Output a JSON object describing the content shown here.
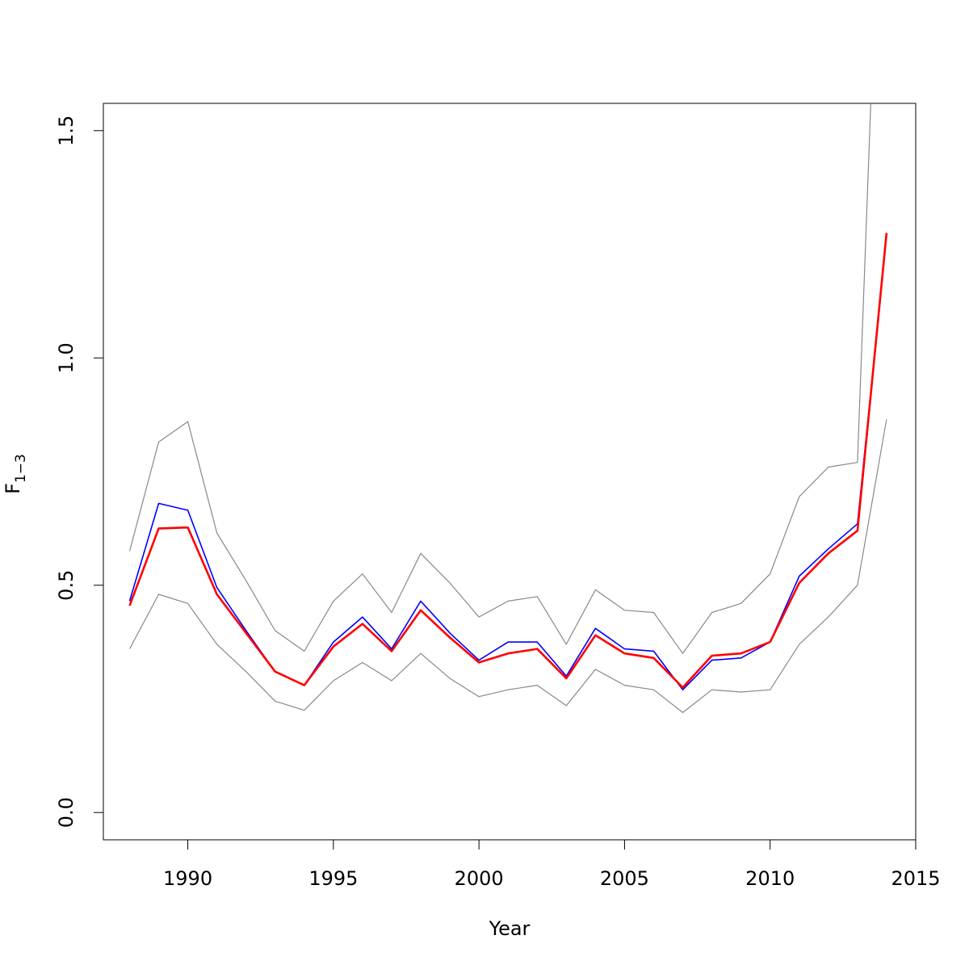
{
  "chart_data": {
    "type": "line",
    "title": "",
    "xlabel": "Year",
    "ylabel": "F",
    "ylabel_subscript": "1−3",
    "xlim": [
      1987.1,
      2015.0
    ],
    "ylim": [
      -0.06,
      1.56
    ],
    "x_ticks": [
      1990,
      1995,
      2000,
      2005,
      2010,
      2015
    ],
    "x_tick_labels": [
      "1990",
      "1995",
      "2000",
      "2005",
      "2010",
      "2015"
    ],
    "y_ticks": [
      0.0,
      0.5,
      1.0,
      1.5
    ],
    "y_tick_labels": [
      "0.0",
      "0.5",
      "1.0",
      "1.5"
    ],
    "grid": false,
    "legend": "none",
    "x": [
      1988,
      1989,
      1990,
      1991,
      1992,
      1993,
      1994,
      1995,
      1996,
      1997,
      1998,
      1999,
      2000,
      2001,
      2002,
      2003,
      2004,
      2005,
      2006,
      2007,
      2008,
      2009,
      2010,
      2011,
      2012,
      2013,
      2014
    ],
    "series": [
      {
        "color": "#888888",
        "width": 1.2,
        "values": [
          0.575,
          0.815,
          0.86,
          0.615,
          0.51,
          0.4,
          0.355,
          0.465,
          0.525,
          0.44,
          0.57,
          0.505,
          0.43,
          0.465,
          0.475,
          0.37,
          0.49,
          0.445,
          0.44,
          0.35,
          0.44,
          0.46,
          0.525,
          0.695,
          0.76,
          0.77,
          2.5
        ]
      },
      {
        "color": "#888888",
        "width": 1.2,
        "values": [
          0.36,
          0.48,
          0.46,
          0.37,
          0.31,
          0.245,
          0.225,
          0.29,
          0.33,
          0.29,
          0.35,
          0.295,
          0.255,
          0.27,
          0.28,
          0.235,
          0.315,
          0.28,
          0.27,
          0.22,
          0.27,
          0.265,
          0.27,
          0.37,
          0.43,
          0.5,
          0.865
        ]
      },
      {
        "color": "#0000ff",
        "width": 1.6,
        "values": [
          0.465,
          0.68,
          0.665,
          0.495,
          0.4,
          0.31,
          0.28,
          0.375,
          0.43,
          0.36,
          0.465,
          0.395,
          0.335,
          0.375,
          0.375,
          0.3,
          0.405,
          0.36,
          0.355,
          0.27,
          0.335,
          0.34,
          0.375,
          0.52,
          0.58,
          0.635,
          1.27
        ]
      },
      {
        "color": "#ff0000",
        "width": 2.6,
        "values": [
          0.455,
          0.625,
          0.627,
          0.48,
          0.395,
          0.31,
          0.28,
          0.365,
          0.415,
          0.355,
          0.445,
          0.385,
          0.33,
          0.35,
          0.36,
          0.295,
          0.39,
          0.35,
          0.34,
          0.275,
          0.345,
          0.35,
          0.375,
          0.505,
          0.57,
          0.62,
          1.275
        ]
      }
    ]
  }
}
